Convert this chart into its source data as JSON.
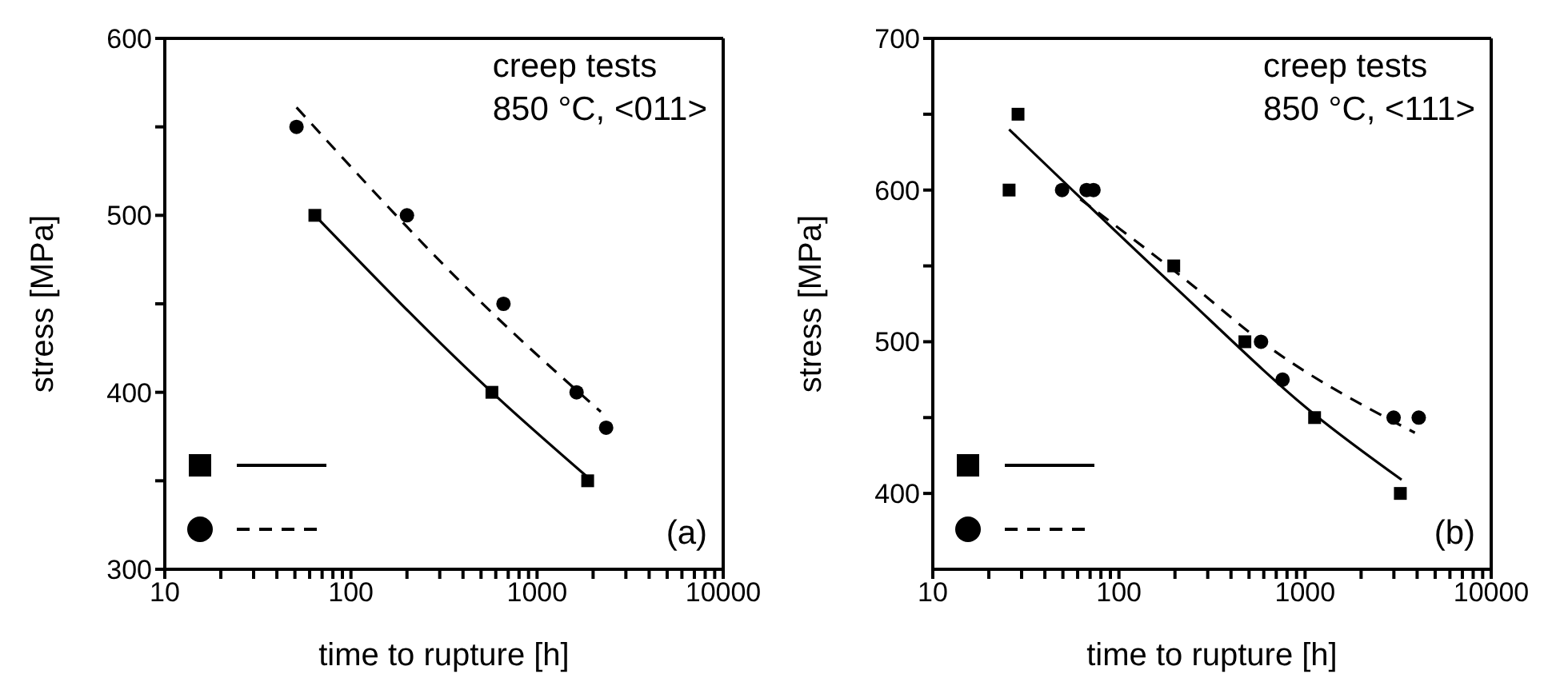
{
  "chart_data": [
    {
      "type": "scatter",
      "xlabel": "time to rupture [h]",
      "ylabel": "stress [MPa]",
      "log": "x",
      "xlim": [
        10,
        10000
      ],
      "ylim": [
        300,
        600
      ],
      "xticks": [
        10,
        {
          "value": 20,
          "label": null
        },
        {
          "value": 30,
          "label": null
        },
        {
          "value": 40,
          "label": null
        },
        {
          "value": 50,
          "label": null
        },
        {
          "value": 60,
          "label": null
        },
        {
          "value": 70,
          "label": null
        },
        {
          "value": 80,
          "label": null
        },
        {
          "value": 90,
          "label": null
        },
        100,
        {
          "value": 200,
          "label": null
        },
        {
          "value": 300,
          "label": null
        },
        {
          "value": 400,
          "label": null
        },
        {
          "value": 500,
          "label": null
        },
        {
          "value": 600,
          "label": null
        },
        {
          "value": 700,
          "label": null
        },
        {
          "value": 800,
          "label": null
        },
        {
          "value": 900,
          "label": null
        },
        1000,
        {
          "value": 2000,
          "label": null
        },
        {
          "value": 3000,
          "label": null
        },
        {
          "value": 4000,
          "label": null
        },
        {
          "value": 5000,
          "label": null
        },
        {
          "value": 6000,
          "label": null
        },
        {
          "value": 7000,
          "label": null
        },
        {
          "value": 8000,
          "label": null
        },
        {
          "value": 9000,
          "label": null
        },
        10000
      ],
      "yticks": [
        300,
        {
          "value": 350,
          "label": null
        },
        400,
        {
          "value": 450,
          "label": null
        },
        500,
        {
          "value": 550,
          "label": null
        },
        600
      ],
      "grid": false,
      "annotations": [
        "creep tests",
        "850 °C, <011>",
        "(a)"
      ],
      "series": [
        {
          "type": "scatter",
          "marker": "square",
          "color": "#000000",
          "x": [
            64,
            572,
            1870
          ],
          "values": [
            500,
            400,
            350
          ]
        },
        {
          "type": "scatter",
          "marker": "circle",
          "color": "#000000",
          "x": [
            51,
            200,
            660,
            1630,
            2350
          ],
          "values": [
            550,
            500,
            450,
            400,
            380
          ]
        },
        {
          "type": "line",
          "marker": "none",
          "line_style": "solid",
          "color": "#000000",
          "x": [
            64,
            572,
            1870
          ],
          "values": [
            500,
            400,
            352
          ]
        },
        {
          "type": "line",
          "marker": "none",
          "line_style": "dashed",
          "color": "#000000",
          "x": [
            51,
            572,
            2200
          ],
          "values": [
            561,
            445,
            389
          ]
        }
      ]
    },
    {
      "type": "scatter",
      "xlabel": "time to rupture [h]",
      "ylabel": "stress [MPa]",
      "log": "x",
      "xlim": [
        10,
        10000
      ],
      "ylim": [
        350,
        700
      ],
      "xticks": [
        10,
        {
          "value": 20,
          "label": null
        },
        {
          "value": 30,
          "label": null
        },
        {
          "value": 40,
          "label": null
        },
        {
          "value": 50,
          "label": null
        },
        {
          "value": 60,
          "label": null
        },
        {
          "value": 70,
          "label": null
        },
        {
          "value": 80,
          "label": null
        },
        {
          "value": 90,
          "label": null
        },
        100,
        {
          "value": 200,
          "label": null
        },
        {
          "value": 300,
          "label": null
        },
        {
          "value": 400,
          "label": null
        },
        {
          "value": 500,
          "label": null
        },
        {
          "value": 600,
          "label": null
        },
        {
          "value": 700,
          "label": null
        },
        {
          "value": 800,
          "label": null
        },
        {
          "value": 900,
          "label": null
        },
        1000,
        {
          "value": 2000,
          "label": null
        },
        {
          "value": 3000,
          "label": null
        },
        {
          "value": 4000,
          "label": null
        },
        {
          "value": 5000,
          "label": null
        },
        {
          "value": 6000,
          "label": null
        },
        {
          "value": 7000,
          "label": null
        },
        {
          "value": 8000,
          "label": null
        },
        {
          "value": 9000,
          "label": null
        },
        10000
      ],
      "yticks": [
        400,
        {
          "value": 450,
          "label": null
        },
        500,
        {
          "value": 550,
          "label": null
        },
        600,
        {
          "value": 650,
          "label": null
        },
        700
      ],
      "grid": false,
      "annotations": [
        "creep tests",
        "850 °C, <111>",
        "(b)"
      ],
      "series": [
        {
          "type": "scatter",
          "marker": "square",
          "color": "#000000",
          "x": [
            28.7,
            25.7,
            197,
            475,
            1125,
            3250
          ],
          "values": [
            650,
            600,
            550,
            500,
            450,
            400
          ]
        },
        {
          "type": "scatter",
          "marker": "circle",
          "color": "#000000",
          "x": [
            49.5,
            67,
            73,
            580,
            757,
            2990,
            4080
          ],
          "values": [
            600,
            600,
            600,
            500,
            475,
            450,
            450
          ]
        },
        {
          "type": "line",
          "marker": "none",
          "line_style": "solid",
          "color": "#000000",
          "x": [
            25.7,
            200,
            1125,
            3300
          ],
          "values": [
            640,
            536,
            452,
            409
          ]
        },
        {
          "type": "line",
          "marker": "none",
          "line_style": "dashed",
          "color": "#000000",
          "x": [
            62,
            217,
            600,
            3890
          ],
          "values": [
            594,
            543,
            499,
            440
          ]
        }
      ]
    }
  ]
}
